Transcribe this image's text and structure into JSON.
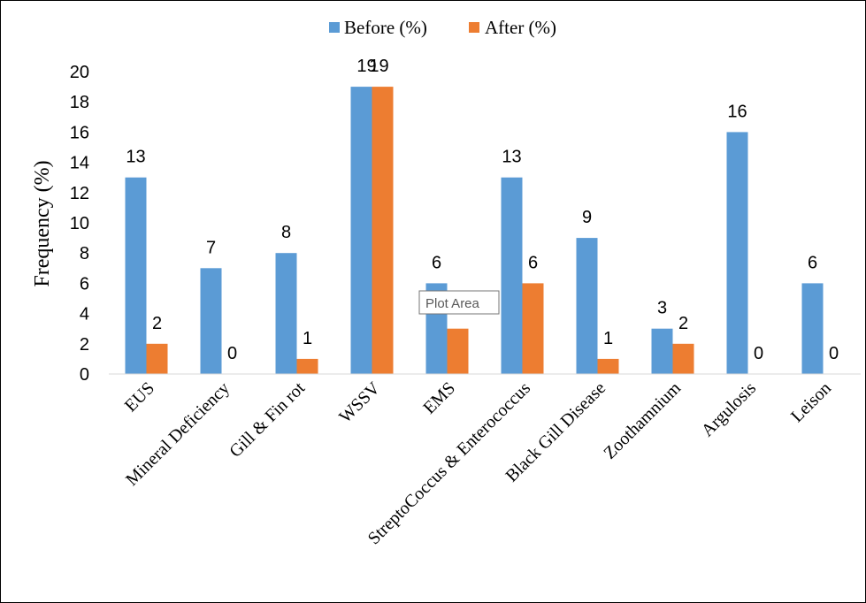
{
  "chart_data": {
    "type": "bar",
    "title": "",
    "xlabel": "",
    "ylabel": "Frequency (%)",
    "ylim": [
      0,
      20
    ],
    "yticks": [
      0,
      2,
      4,
      6,
      8,
      10,
      12,
      14,
      16,
      18,
      20
    ],
    "grid": false,
    "legend_position": "top",
    "categories": [
      "EUS",
      "Mineral Deficiency",
      "Gill & Fin rot",
      "WSSV",
      "EMS",
      "StreptoCoccus & Enterococcus",
      "Black Gill Disease",
      "Zoothamnium",
      "Argulosis",
      "Leison"
    ],
    "series": [
      {
        "name": "Before (%)",
        "color": "#5b9bd5",
        "values": [
          13,
          7,
          8,
          19,
          6,
          13,
          9,
          3,
          16,
          6
        ]
      },
      {
        "name": "After (%)",
        "color": "#ed7d31",
        "values": [
          2,
          0,
          1,
          19,
          3,
          6,
          1,
          2,
          0,
          0
        ]
      }
    ],
    "data_labels": {
      "before": [
        "13",
        "7",
        "8",
        "19",
        "6",
        "13",
        "9",
        "3",
        "16",
        "6"
      ],
      "after": [
        "2",
        "0",
        "1",
        "19",
        "",
        "6",
        "1",
        "2",
        "0",
        "0"
      ]
    }
  },
  "tooltip": {
    "text": "Plot Area"
  }
}
